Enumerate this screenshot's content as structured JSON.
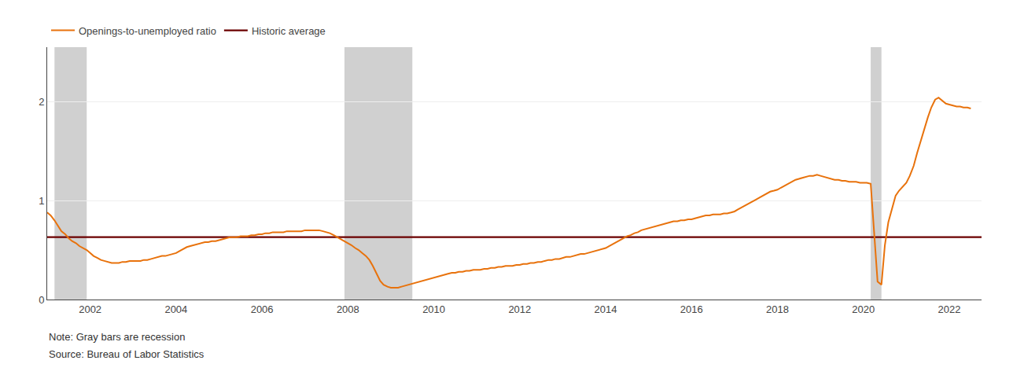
{
  "chart_data": {
    "type": "line",
    "x": [
      2001.0,
      2001.08,
      2001.17,
      2001.25,
      2001.33,
      2001.42,
      2001.5,
      2001.58,
      2001.67,
      2001.75,
      2001.83,
      2001.92,
      2002.0,
      2002.08,
      2002.17,
      2002.25,
      2002.33,
      2002.42,
      2002.5,
      2002.58,
      2002.67,
      2002.75,
      2002.83,
      2002.92,
      2003.0,
      2003.08,
      2003.17,
      2003.25,
      2003.33,
      2003.42,
      2003.5,
      2003.58,
      2003.67,
      2003.75,
      2003.83,
      2003.92,
      2004.0,
      2004.08,
      2004.17,
      2004.25,
      2004.33,
      2004.42,
      2004.5,
      2004.58,
      2004.67,
      2004.75,
      2004.83,
      2004.92,
      2005.0,
      2005.08,
      2005.17,
      2005.25,
      2005.33,
      2005.42,
      2005.5,
      2005.58,
      2005.67,
      2005.75,
      2005.83,
      2005.92,
      2006.0,
      2006.08,
      2006.17,
      2006.25,
      2006.33,
      2006.42,
      2006.5,
      2006.58,
      2006.67,
      2006.75,
      2006.83,
      2006.92,
      2007.0,
      2007.08,
      2007.17,
      2007.25,
      2007.33,
      2007.42,
      2007.5,
      2007.58,
      2007.67,
      2007.75,
      2007.83,
      2007.92,
      2008.0,
      2008.08,
      2008.17,
      2008.25,
      2008.33,
      2008.42,
      2008.5,
      2008.58,
      2008.67,
      2008.75,
      2008.83,
      2008.92,
      2009.0,
      2009.08,
      2009.17,
      2009.25,
      2009.33,
      2009.42,
      2009.5,
      2009.58,
      2009.67,
      2009.75,
      2009.83,
      2009.92,
      2010.0,
      2010.08,
      2010.17,
      2010.25,
      2010.33,
      2010.42,
      2010.5,
      2010.58,
      2010.67,
      2010.75,
      2010.83,
      2010.92,
      2011.0,
      2011.08,
      2011.17,
      2011.25,
      2011.33,
      2011.42,
      2011.5,
      2011.58,
      2011.67,
      2011.75,
      2011.83,
      2011.92,
      2012.0,
      2012.08,
      2012.17,
      2012.25,
      2012.33,
      2012.42,
      2012.5,
      2012.58,
      2012.67,
      2012.75,
      2012.83,
      2012.92,
      2013.0,
      2013.08,
      2013.17,
      2013.25,
      2013.33,
      2013.42,
      2013.5,
      2013.58,
      2013.67,
      2013.75,
      2013.83,
      2013.92,
      2014.0,
      2014.08,
      2014.17,
      2014.25,
      2014.33,
      2014.42,
      2014.5,
      2014.58,
      2014.67,
      2014.75,
      2014.83,
      2014.92,
      2015.0,
      2015.08,
      2015.17,
      2015.25,
      2015.33,
      2015.42,
      2015.5,
      2015.58,
      2015.67,
      2015.75,
      2015.83,
      2015.92,
      2016.0,
      2016.08,
      2016.17,
      2016.25,
      2016.33,
      2016.42,
      2016.5,
      2016.58,
      2016.67,
      2016.75,
      2016.83,
      2016.92,
      2017.0,
      2017.08,
      2017.17,
      2017.25,
      2017.33,
      2017.42,
      2017.5,
      2017.58,
      2017.67,
      2017.75,
      2017.83,
      2017.92,
      2018.0,
      2018.08,
      2018.17,
      2018.25,
      2018.33,
      2018.42,
      2018.5,
      2018.58,
      2018.67,
      2018.75,
      2018.83,
      2018.92,
      2019.0,
      2019.08,
      2019.17,
      2019.25,
      2019.33,
      2019.42,
      2019.5,
      2019.58,
      2019.67,
      2019.75,
      2019.83,
      2019.92,
      2020.0,
      2020.08,
      2020.17,
      2020.25,
      2020.33,
      2020.42,
      2020.5,
      2020.58,
      2020.67,
      2020.75,
      2020.83,
      2020.92,
      2021.0,
      2021.08,
      2021.17,
      2021.25,
      2021.33,
      2021.42,
      2021.5,
      2021.58,
      2021.67,
      2021.75,
      2021.83,
      2021.92,
      2022.0,
      2022.08,
      2022.17,
      2022.25,
      2022.33,
      2022.42,
      2022.5
    ],
    "series": [
      {
        "name": "Openings-to-unemployed ratio",
        "color": "#E8720C",
        "values": [
          0.88,
          0.85,
          0.8,
          0.74,
          0.69,
          0.66,
          0.62,
          0.59,
          0.57,
          0.54,
          0.52,
          0.5,
          0.47,
          0.44,
          0.42,
          0.4,
          0.39,
          0.38,
          0.37,
          0.37,
          0.37,
          0.38,
          0.38,
          0.39,
          0.39,
          0.39,
          0.39,
          0.4,
          0.4,
          0.41,
          0.42,
          0.43,
          0.44,
          0.44,
          0.45,
          0.46,
          0.47,
          0.49,
          0.51,
          0.53,
          0.54,
          0.55,
          0.56,
          0.57,
          0.58,
          0.58,
          0.59,
          0.59,
          0.6,
          0.61,
          0.62,
          0.63,
          0.63,
          0.63,
          0.64,
          0.64,
          0.64,
          0.65,
          0.65,
          0.66,
          0.66,
          0.67,
          0.67,
          0.68,
          0.68,
          0.68,
          0.68,
          0.69,
          0.69,
          0.69,
          0.69,
          0.69,
          0.7,
          0.7,
          0.7,
          0.7,
          0.7,
          0.69,
          0.68,
          0.67,
          0.65,
          0.63,
          0.61,
          0.59,
          0.57,
          0.55,
          0.52,
          0.5,
          0.47,
          0.44,
          0.4,
          0.34,
          0.26,
          0.19,
          0.15,
          0.13,
          0.12,
          0.12,
          0.12,
          0.13,
          0.14,
          0.15,
          0.16,
          0.17,
          0.18,
          0.19,
          0.2,
          0.21,
          0.22,
          0.23,
          0.24,
          0.25,
          0.26,
          0.27,
          0.27,
          0.28,
          0.28,
          0.29,
          0.29,
          0.3,
          0.3,
          0.3,
          0.31,
          0.31,
          0.32,
          0.32,
          0.33,
          0.33,
          0.34,
          0.34,
          0.34,
          0.35,
          0.35,
          0.36,
          0.36,
          0.37,
          0.37,
          0.38,
          0.38,
          0.39,
          0.4,
          0.4,
          0.41,
          0.41,
          0.42,
          0.43,
          0.43,
          0.44,
          0.45,
          0.46,
          0.46,
          0.47,
          0.48,
          0.49,
          0.5,
          0.51,
          0.52,
          0.54,
          0.56,
          0.58,
          0.6,
          0.62,
          0.64,
          0.65,
          0.67,
          0.68,
          0.7,
          0.71,
          0.72,
          0.73,
          0.74,
          0.75,
          0.76,
          0.77,
          0.78,
          0.79,
          0.79,
          0.8,
          0.8,
          0.81,
          0.81,
          0.82,
          0.83,
          0.84,
          0.85,
          0.85,
          0.86,
          0.86,
          0.86,
          0.87,
          0.87,
          0.88,
          0.89,
          0.91,
          0.93,
          0.95,
          0.97,
          0.99,
          1.01,
          1.03,
          1.05,
          1.07,
          1.09,
          1.1,
          1.11,
          1.13,
          1.15,
          1.17,
          1.19,
          1.21,
          1.22,
          1.23,
          1.24,
          1.25,
          1.25,
          1.26,
          1.25,
          1.24,
          1.23,
          1.22,
          1.21,
          1.21,
          1.2,
          1.2,
          1.19,
          1.19,
          1.19,
          1.18,
          1.18,
          1.18,
          1.17,
          0.63,
          0.18,
          0.15,
          0.55,
          0.78,
          0.93,
          1.05,
          1.1,
          1.14,
          1.18,
          1.25,
          1.35,
          1.48,
          1.6,
          1.72,
          1.84,
          1.94,
          2.02,
          2.04,
          2.01,
          1.98,
          1.97,
          1.96,
          1.95,
          1.95,
          1.94,
          1.94,
          1.93
        ]
      }
    ],
    "hlines": [
      {
        "name": "Historic average",
        "color": "#6B0000",
        "value": 0.63
      }
    ],
    "shaded_ranges": [
      {
        "start": 2001.17,
        "end": 2001.92
      },
      {
        "start": 2007.92,
        "end": 2009.5
      },
      {
        "start": 2020.17,
        "end": 2020.42
      }
    ],
    "shaded_color": "#AAAAAA",
    "xlim": [
      2001.0,
      2022.75
    ],
    "xticks": [
      2002,
      2004,
      2006,
      2008,
      2010,
      2012,
      2014,
      2016,
      2018,
      2020,
      2022
    ],
    "ylim": [
      0.0,
      2.55
    ],
    "yticks": [
      0,
      1,
      2
    ],
    "grid": "y",
    "legend": "upper left",
    "annotations": [
      "Note: Gray bars are recession",
      "Source: Bureau of Labor Statistics"
    ]
  }
}
